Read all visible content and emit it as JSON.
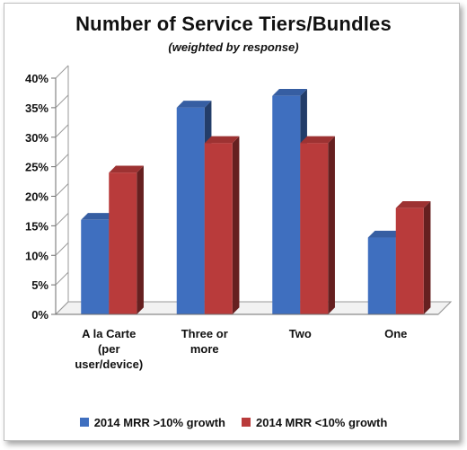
{
  "chart_data": {
    "type": "bar",
    "title": "Number of Service Tiers/Bundles",
    "subtitle": "(weighted by response)",
    "categories": [
      [
        "A la Carte",
        "(per",
        "user/device)"
      ],
      [
        "Three or",
        "more"
      ],
      [
        "Two"
      ],
      [
        "One"
      ]
    ],
    "series": [
      {
        "name": "2014 MRR >10% growth",
        "color": "#3f6fbf",
        "values": [
          16,
          35,
          37,
          13
        ]
      },
      {
        "name": "2014 MRR <10% growth",
        "color": "#b93b3b",
        "values": [
          24,
          29,
          29,
          18
        ]
      }
    ],
    "y_ticks": [
      "0%",
      "5%",
      "10%",
      "15%",
      "20%",
      "25%",
      "30%",
      "35%",
      "40%"
    ],
    "ylim": [
      0,
      40
    ],
    "grid": false,
    "legend_position": "bottom",
    "style": "3d-clustered-column"
  }
}
